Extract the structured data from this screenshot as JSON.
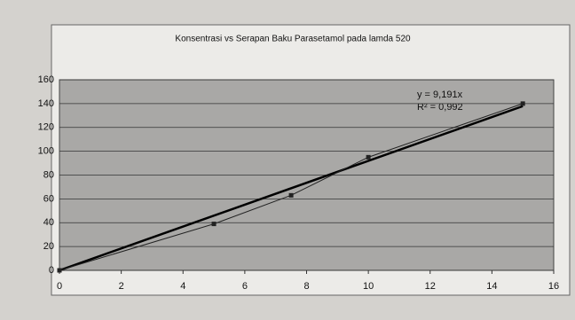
{
  "chart_data": {
    "type": "scatter",
    "title": "Konsentrasi vs Serapan Baku Parasetamol pada lamda 520",
    "x": [
      0,
      5,
      7.5,
      10,
      15
    ],
    "series": [
      {
        "color": "#222222",
        "values": [
          0,
          39,
          63,
          95,
          140
        ]
      }
    ],
    "trendline": {
      "slope": 9.191,
      "equation": "y = 9,191x",
      "r_squared": "R² = 0,992",
      "color": "#000000"
    },
    "xlim": [
      0,
      16
    ],
    "xticks": [
      0,
      2,
      4,
      6,
      8,
      10,
      12,
      14,
      16
    ],
    "ylim": [
      0,
      160
    ],
    "yticks": [
      0,
      20,
      40,
      60,
      80,
      100,
      120,
      140,
      160
    ],
    "grid": true
  }
}
